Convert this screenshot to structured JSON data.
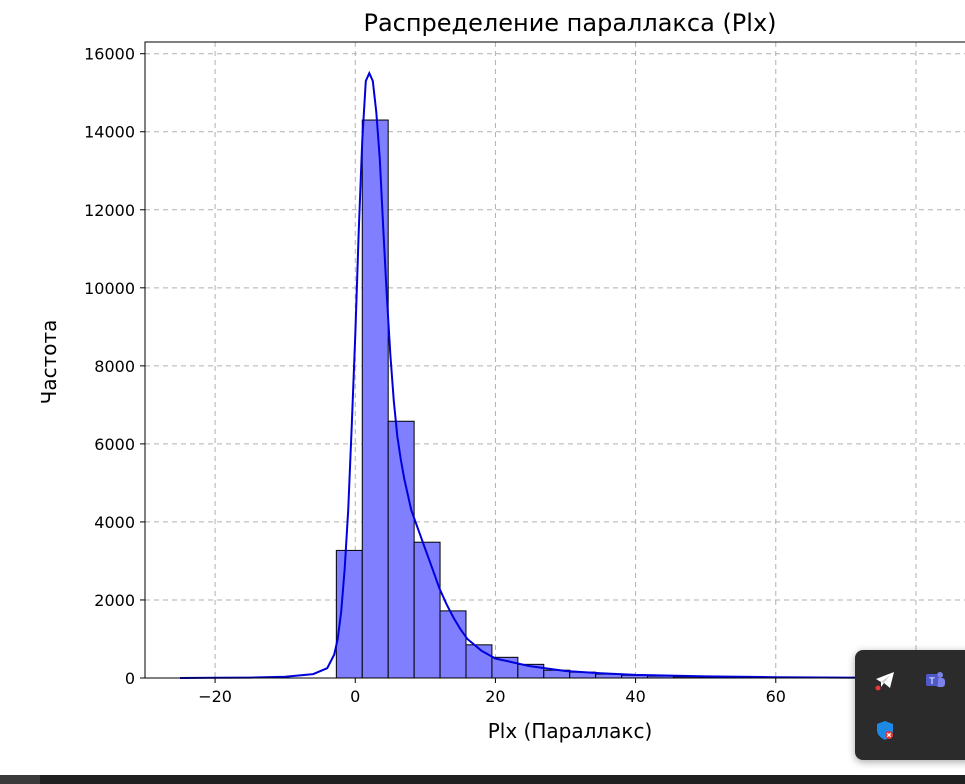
{
  "chart_data": {
    "type": "bar",
    "title": "Распределение параллакса (Plx)",
    "xlabel": "Plx (Параллакс)",
    "ylabel": "Частота",
    "xlim": [
      -30,
      87
    ],
    "ylim": [
      0,
      16300
    ],
    "xticks": [
      -20,
      0,
      20,
      40,
      60
    ],
    "xtick_labels": [
      "−20",
      "0",
      "20",
      "40",
      "60"
    ],
    "yticks": [
      0,
      2000,
      4000,
      6000,
      8000,
      10000,
      12000,
      14000,
      16000
    ],
    "ytick_labels": [
      "0",
      "2000",
      "4000",
      "6000",
      "8000",
      "10000",
      "12000",
      "14000",
      "16000"
    ],
    "grid": true,
    "bin_width": 3.7,
    "bins": [
      {
        "x0": -2.7,
        "value": 3270
      },
      {
        "x0": 1.0,
        "value": 14300
      },
      {
        "x0": 4.7,
        "value": 6580
      },
      {
        "x0": 8.4,
        "value": 3480
      },
      {
        "x0": 12.1,
        "value": 1720
      },
      {
        "x0": 15.8,
        "value": 850
      },
      {
        "x0": 19.5,
        "value": 530
      },
      {
        "x0": 23.2,
        "value": 350
      },
      {
        "x0": 26.9,
        "value": 200
      },
      {
        "x0": 30.6,
        "value": 150
      },
      {
        "x0": 34.3,
        "value": 100
      },
      {
        "x0": 38.0,
        "value": 70
      },
      {
        "x0": 41.7,
        "value": 50
      },
      {
        "x0": 45.4,
        "value": 30
      },
      {
        "x0": 49.1,
        "value": 20
      },
      {
        "x0": 52.8,
        "value": 15
      },
      {
        "x0": 56.5,
        "value": 10
      },
      {
        "x0": 60.2,
        "value": 8
      },
      {
        "x0": 63.9,
        "value": 5
      },
      {
        "x0": 67.6,
        "value": 5
      },
      {
        "x0": 71.3,
        "value": 5
      }
    ],
    "kde": {
      "x": [
        -25,
        -20,
        -15,
        -10,
        -6,
        -4,
        -3,
        -2.5,
        -2,
        -1.5,
        -1,
        -0.5,
        0,
        0.5,
        1,
        1.5,
        2,
        2.5,
        3,
        3.5,
        4,
        4.5,
        5,
        5.5,
        6,
        6.5,
        7,
        7.5,
        8,
        9,
        10,
        11,
        12,
        13,
        14,
        15,
        16,
        18,
        20,
        25,
        30,
        35,
        40,
        50,
        60,
        70,
        75
      ],
      "y": [
        0,
        5,
        10,
        30,
        100,
        250,
        600,
        1000,
        1700,
        2800,
        4300,
        6500,
        8800,
        11500,
        13800,
        15300,
        15500,
        15300,
        14500,
        13300,
        11500,
        9800,
        8300,
        7100,
        6200,
        5600,
        5100,
        4700,
        4300,
        3800,
        3300,
        2800,
        2300,
        1900,
        1550,
        1250,
        1000,
        700,
        500,
        300,
        180,
        120,
        80,
        40,
        20,
        10,
        5
      ],
      "color": "#0000dd"
    },
    "bar_fill": "#7f7fff",
    "bar_edge": "#000000",
    "grid_color": "#b0b0b0"
  },
  "tray": {
    "icons": [
      "telegram-icon",
      "teams-icon",
      "defender-icon"
    ]
  }
}
